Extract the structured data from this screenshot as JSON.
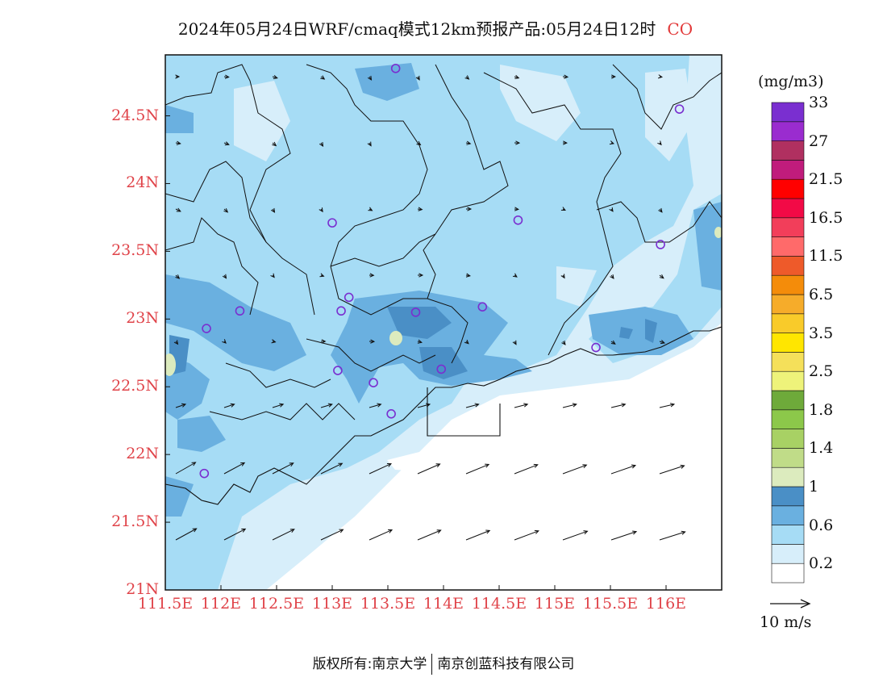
{
  "title": {
    "main": "2024年05月24日WRF/cmaq模式12km预报产品:05月24日12时",
    "species": "CO"
  },
  "footer": {
    "left": "版权所有:南京大学",
    "right": "南京创蓝科技有限公司"
  },
  "map": {
    "lat_labels": [
      "24.5N",
      "24N",
      "23.5N",
      "23N",
      "22.5N",
      "22N",
      "21.5N",
      "21N"
    ],
    "lon_labels": [
      "111.5E",
      "112E",
      "112.5E",
      "113E",
      "113.5E",
      "114E",
      "114.5E",
      "115E",
      "115.5E",
      "116E"
    ],
    "lat_range": [
      21,
      24.95
    ],
    "lon_range": [
      111.5,
      116.5
    ],
    "grid": false,
    "station_marker_color": "#7a2fd0"
  },
  "colorbar": {
    "unit": "(mg/m3)",
    "labels": [
      "0.2",
      "0.6",
      "1",
      "1.4",
      "1.8",
      "2.5",
      "3.5",
      "6.5",
      "11.5",
      "16.5",
      "21.5",
      "27",
      "33"
    ],
    "colors": [
      "#ffffff",
      "#d7eefa",
      "#a6dcf5",
      "#6ab0e0",
      "#4a8fc6",
      "#dcebbe",
      "#c0dc88",
      "#a8d164",
      "#8cc84a",
      "#6eaa3a",
      "#eef37a",
      "#f5e05a",
      "#ffe600",
      "#f9cb2a",
      "#f6ac2a",
      "#f48c0a",
      "#ee5a2a",
      "#ff6a6a",
      "#f23e5a",
      "#f20a46",
      "#ff0000",
      "#c01c7c",
      "#b03060",
      "#9a2ccf",
      "#7a2fd0"
    ]
  },
  "wind": {
    "label": "10 m/s"
  }
}
